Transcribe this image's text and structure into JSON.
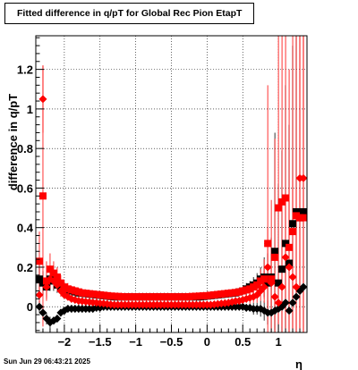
{
  "title": "Fitted difference in q/pT for Global Rec Pion EtapT",
  "footer_text": "Sun Jun 29 06:43:21 2025",
  "colors": {
    "series_black": "#000000",
    "series_red": "#ff0000",
    "grid": "#000000"
  },
  "chart_data": {
    "type": "scatter",
    "title": "Fitted difference in q/pT for Global Rec Pion EtapT",
    "xlabel": "η",
    "ylabel": "difference in q/pT",
    "xlim": [
      -2.4,
      1.4
    ],
    "ylim": [
      -0.13,
      1.37
    ],
    "x_ticks": [
      -2,
      -1.5,
      -1,
      -0.5,
      0,
      0.5,
      1
    ],
    "x_tick_labels": [
      "−2",
      "−1.5",
      "−1",
      "−0.5",
      "0",
      "0.5",
      "1"
    ],
    "y_ticks": [
      0,
      0.2,
      0.4,
      0.6,
      0.8,
      1,
      1.2
    ],
    "y_tick_labels": [
      "0",
      "0.2",
      "0.4",
      "0.6",
      "0.8",
      "1",
      "1.2"
    ],
    "grid": true,
    "series": [
      {
        "name": "",
        "marker": "square",
        "color": "#000000",
        "x": [
          -2.35,
          -2.3,
          -2.25,
          -2.2,
          -2.15,
          -2.1,
          -2.05,
          -2.0,
          -1.95,
          -1.9,
          -1.85,
          -1.8,
          -1.75,
          -1.7,
          -1.65,
          -1.6,
          -1.55,
          -1.5,
          -1.45,
          -1.4,
          -1.35,
          -1.3,
          -1.25,
          -1.2,
          -1.15,
          -1.1,
          -1.05,
          -1.0,
          -0.95,
          -0.9,
          -0.85,
          -0.8,
          -0.75,
          -0.7,
          -0.65,
          -0.6,
          -0.55,
          -0.5,
          -0.45,
          -0.4,
          -0.35,
          -0.3,
          -0.25,
          -0.2,
          -0.15,
          -0.1,
          -0.05,
          0.0,
          0.05,
          0.1,
          0.15,
          0.2,
          0.25,
          0.3,
          0.35,
          0.4,
          0.45,
          0.5,
          0.55,
          0.6,
          0.65,
          0.7,
          0.75,
          0.8,
          0.85,
          0.9,
          0.95,
          1.0,
          1.05,
          1.1,
          1.15,
          1.2,
          1.25,
          1.3,
          1.35
        ],
        "y": [
          0.14,
          0.12,
          0.1,
          0.14,
          0.13,
          0.11,
          0.1,
          0.09,
          0.085,
          0.08,
          0.075,
          0.07,
          0.068,
          0.066,
          0.064,
          0.062,
          0.06,
          0.058,
          0.056,
          0.054,
          0.052,
          0.05,
          0.05,
          0.05,
          0.05,
          0.05,
          0.05,
          0.05,
          0.05,
          0.05,
          0.05,
          0.05,
          0.05,
          0.05,
          0.05,
          0.05,
          0.05,
          0.05,
          0.05,
          0.05,
          0.05,
          0.05,
          0.05,
          0.05,
          0.05,
          0.05,
          0.052,
          0.054,
          0.056,
          0.058,
          0.06,
          0.062,
          0.064,
          0.066,
          0.068,
          0.07,
          0.075,
          0.08,
          0.09,
          0.1,
          0.11,
          0.12,
          0.14,
          0.15,
          0.12,
          0.15,
          0.28,
          0.12,
          0.19,
          0.32,
          0.22,
          0.42,
          0.48,
          0.45,
          0.48
        ],
        "err": [
          0.08,
          0.06,
          0.05,
          0.06,
          0.05,
          0.04,
          0.03,
          0.03,
          0.02,
          0.02,
          0.02,
          0.02,
          0.02,
          0.02,
          0.02,
          0.02,
          0.02,
          0.02,
          0.02,
          0.02,
          0.02,
          0.02,
          0.02,
          0.02,
          0.02,
          0.02,
          0.02,
          0.02,
          0.02,
          0.02,
          0.02,
          0.02,
          0.02,
          0.02,
          0.02,
          0.02,
          0.02,
          0.02,
          0.02,
          0.02,
          0.02,
          0.02,
          0.02,
          0.02,
          0.02,
          0.02,
          0.02,
          0.02,
          0.02,
          0.02,
          0.02,
          0.02,
          0.02,
          0.02,
          0.02,
          0.02,
          0.02,
          0.02,
          0.03,
          0.03,
          0.04,
          0.05,
          0.06,
          0.1,
          0.15,
          0.2,
          0.6,
          0.5,
          0.6,
          0.8,
          0.7,
          0.9,
          1.0,
          1.0,
          1.0
        ]
      },
      {
        "name": "",
        "marker": "diamond",
        "color": "#000000",
        "x": [
          -2.35,
          -2.3,
          -2.25,
          -2.2,
          -2.15,
          -2.1,
          -2.05,
          -2.0,
          -1.95,
          -1.9,
          -1.85,
          -1.8,
          -1.75,
          -1.7,
          -1.65,
          -1.6,
          -1.55,
          -1.5,
          -1.45,
          -1.4,
          -1.35,
          -1.3,
          -1.25,
          -1.2,
          -1.15,
          -1.1,
          -1.05,
          -1.0,
          -0.95,
          -0.9,
          -0.85,
          -0.8,
          -0.75,
          -0.7,
          -0.65,
          -0.6,
          -0.55,
          -0.5,
          -0.45,
          -0.4,
          -0.35,
          -0.3,
          -0.25,
          -0.2,
          -0.15,
          -0.1,
          -0.05,
          0.0,
          0.05,
          0.1,
          0.15,
          0.2,
          0.25,
          0.3,
          0.35,
          0.4,
          0.45,
          0.5,
          0.55,
          0.6,
          0.65,
          0.7,
          0.75,
          0.8,
          0.85,
          0.9,
          0.95,
          1.0,
          1.05,
          1.1,
          1.15,
          1.2,
          1.25,
          1.3,
          1.35
        ],
        "y": [
          0.0,
          -0.03,
          -0.06,
          -0.08,
          -0.07,
          -0.06,
          -0.03,
          -0.02,
          -0.01,
          -0.01,
          -0.01,
          -0.01,
          -0.01,
          -0.01,
          -0.01,
          -0.01,
          -0.005,
          -0.005,
          0.0,
          0.0,
          0.0,
          0.0,
          0.0,
          0.0,
          0.0,
          0.0,
          0.0,
          0.0,
          0.0,
          0.0,
          0.0,
          0.0,
          0.0,
          0.0,
          0.0,
          0.0,
          0.0,
          0.0,
          0.0,
          0.0,
          0.0,
          0.0,
          0.0,
          0.0,
          0.0,
          0.0,
          0.0,
          0.0,
          0.0,
          0.0,
          0.0,
          0.0,
          0.0,
          0.0,
          0.0,
          0.0,
          0.0,
          0.0,
          -0.005,
          -0.005,
          -0.01,
          -0.01,
          -0.01,
          -0.02,
          -0.03,
          -0.03,
          -0.02,
          -0.01,
          0.0,
          0.02,
          -0.02,
          0.02,
          0.05,
          0.08,
          0.1
        ],
        "err": [
          0.03,
          0.03,
          0.03,
          0.03,
          0.02,
          0.02,
          0.02,
          0.02,
          0.02,
          0.02,
          0.02,
          0.02,
          0.02,
          0.02,
          0.02,
          0.02,
          0.02,
          0.02,
          0.02,
          0.02,
          0.02,
          0.02,
          0.02,
          0.02,
          0.02,
          0.02,
          0.02,
          0.02,
          0.02,
          0.02,
          0.02,
          0.02,
          0.02,
          0.02,
          0.02,
          0.02,
          0.02,
          0.02,
          0.02,
          0.02,
          0.02,
          0.02,
          0.02,
          0.02,
          0.02,
          0.02,
          0.02,
          0.02,
          0.02,
          0.02,
          0.02,
          0.02,
          0.02,
          0.02,
          0.02,
          0.02,
          0.02,
          0.02,
          0.02,
          0.02,
          0.03,
          0.03,
          0.04,
          0.05,
          0.06,
          0.08,
          0.1,
          0.15,
          0.2,
          0.25,
          0.3,
          0.35,
          0.4,
          0.45,
          0.5
        ]
      },
      {
        "name": "",
        "marker": "square",
        "color": "#ff0000",
        "x": [
          -2.35,
          -2.3,
          -2.25,
          -2.2,
          -2.15,
          -2.1,
          -2.05,
          -2.0,
          -1.95,
          -1.9,
          -1.85,
          -1.8,
          -1.75,
          -1.7,
          -1.65,
          -1.6,
          -1.55,
          -1.5,
          -1.45,
          -1.4,
          -1.35,
          -1.3,
          -1.25,
          -1.2,
          -1.15,
          -1.1,
          -1.05,
          -1.0,
          -0.95,
          -0.9,
          -0.85,
          -0.8,
          -0.75,
          -0.7,
          -0.65,
          -0.6,
          -0.55,
          -0.5,
          -0.45,
          -0.4,
          -0.35,
          -0.3,
          -0.25,
          -0.2,
          -0.15,
          -0.1,
          -0.05,
          0.0,
          0.05,
          0.1,
          0.15,
          0.2,
          0.25,
          0.3,
          0.35,
          0.4,
          0.45,
          0.5,
          0.55,
          0.6,
          0.65,
          0.7,
          0.75,
          0.8,
          0.85,
          0.9,
          0.95,
          1.0,
          1.05,
          1.1,
          1.15,
          1.2,
          1.25,
          1.3,
          1.35
        ],
        "y": [
          0.23,
          0.56,
          0.13,
          0.19,
          0.17,
          0.15,
          0.12,
          0.1,
          0.09,
          0.085,
          0.08,
          0.075,
          0.07,
          0.068,
          0.066,
          0.064,
          0.062,
          0.06,
          0.058,
          0.056,
          0.054,
          0.053,
          0.052,
          0.051,
          0.05,
          0.05,
          0.05,
          0.05,
          0.05,
          0.05,
          0.05,
          0.05,
          0.05,
          0.05,
          0.05,
          0.05,
          0.05,
          0.05,
          0.05,
          0.05,
          0.05,
          0.05,
          0.051,
          0.052,
          0.053,
          0.054,
          0.055,
          0.056,
          0.058,
          0.06,
          0.062,
          0.064,
          0.066,
          0.068,
          0.07,
          0.072,
          0.075,
          0.08,
          0.085,
          0.09,
          0.1,
          0.11,
          0.13,
          0.14,
          0.32,
          0.14,
          0.25,
          0.5,
          0.53,
          0.55,
          0.3,
          0.38,
          0.46,
          0.45,
          0.45
        ],
        "err": [
          0.15,
          0.66,
          0.1,
          0.08,
          0.06,
          0.05,
          0.04,
          0.03,
          0.03,
          0.02,
          0.02,
          0.02,
          0.02,
          0.02,
          0.02,
          0.02,
          0.02,
          0.02,
          0.02,
          0.02,
          0.02,
          0.02,
          0.02,
          0.02,
          0.02,
          0.02,
          0.02,
          0.02,
          0.02,
          0.02,
          0.02,
          0.02,
          0.02,
          0.02,
          0.02,
          0.02,
          0.02,
          0.02,
          0.02,
          0.02,
          0.02,
          0.02,
          0.02,
          0.02,
          0.02,
          0.02,
          0.02,
          0.02,
          0.02,
          0.02,
          0.02,
          0.02,
          0.02,
          0.02,
          0.02,
          0.02,
          0.02,
          0.02,
          0.02,
          0.03,
          0.03,
          0.04,
          0.06,
          0.1,
          0.8,
          0.4,
          0.6,
          0.9,
          1.0,
          1.0,
          0.9,
          1.0,
          1.0,
          1.0,
          1.0
        ]
      },
      {
        "name": "",
        "marker": "diamond",
        "color": "#ff0000",
        "x": [
          -2.35,
          -2.3,
          -2.25,
          -2.2,
          -2.15,
          -2.1,
          -2.05,
          -2.0,
          -1.95,
          -1.9,
          -1.85,
          -1.8,
          -1.75,
          -1.7,
          -1.65,
          -1.6,
          -1.55,
          -1.5,
          -1.45,
          -1.4,
          -1.35,
          -1.3,
          -1.25,
          -1.2,
          -1.15,
          -1.1,
          -1.05,
          -1.0,
          -0.95,
          -0.9,
          -0.85,
          -0.8,
          -0.75,
          -0.7,
          -0.65,
          -0.6,
          -0.55,
          -0.5,
          -0.45,
          -0.4,
          -0.35,
          -0.3,
          -0.25,
          -0.2,
          -0.15,
          -0.1,
          -0.05,
          0.0,
          0.05,
          0.1,
          0.15,
          0.2,
          0.25,
          0.3,
          0.35,
          0.4,
          0.45,
          0.5,
          0.55,
          0.6,
          0.65,
          0.7,
          0.75,
          0.8,
          0.85,
          0.9,
          0.95,
          1.0,
          1.05,
          1.1,
          1.15,
          1.2,
          1.25,
          1.3,
          1.35
        ],
        "y": [
          0.06,
          1.05,
          0.1,
          0.14,
          0.13,
          0.11,
          0.08,
          0.06,
          0.05,
          0.04,
          0.035,
          0.03,
          0.028,
          0.026,
          0.024,
          0.022,
          0.02,
          0.018,
          0.016,
          0.014,
          0.012,
          0.01,
          0.01,
          0.01,
          0.01,
          0.01,
          0.01,
          0.01,
          0.01,
          0.01,
          0.01,
          0.01,
          0.01,
          0.01,
          0.01,
          0.01,
          0.01,
          0.01,
          0.01,
          0.01,
          0.01,
          0.01,
          0.01,
          0.01,
          0.01,
          0.01,
          0.01,
          0.01,
          0.01,
          0.012,
          0.014,
          0.016,
          0.018,
          0.02,
          0.024,
          0.028,
          0.03,
          0.035,
          0.04,
          0.045,
          0.05,
          0.06,
          0.08,
          0.1,
          0.2,
          0.12,
          0.05,
          0.02,
          0.1,
          0.25,
          0.2,
          0.15,
          0.1,
          0.65,
          0.65
        ],
        "err": [
          0.05,
          0.17,
          0.06,
          0.05,
          0.04,
          0.03,
          0.03,
          0.02,
          0.02,
          0.02,
          0.02,
          0.02,
          0.02,
          0.02,
          0.02,
          0.02,
          0.02,
          0.02,
          0.02,
          0.02,
          0.02,
          0.02,
          0.02,
          0.02,
          0.02,
          0.02,
          0.02,
          0.02,
          0.02,
          0.02,
          0.02,
          0.02,
          0.02,
          0.02,
          0.02,
          0.02,
          0.02,
          0.02,
          0.02,
          0.02,
          0.02,
          0.02,
          0.02,
          0.02,
          0.02,
          0.02,
          0.02,
          0.02,
          0.02,
          0.02,
          0.02,
          0.02,
          0.02,
          0.02,
          0.02,
          0.02,
          0.02,
          0.02,
          0.02,
          0.03,
          0.03,
          0.04,
          0.05,
          0.08,
          0.2,
          0.15,
          0.1,
          0.1,
          0.2,
          0.3,
          0.4,
          0.5,
          0.5,
          0.8,
          0.8
        ]
      }
    ]
  }
}
